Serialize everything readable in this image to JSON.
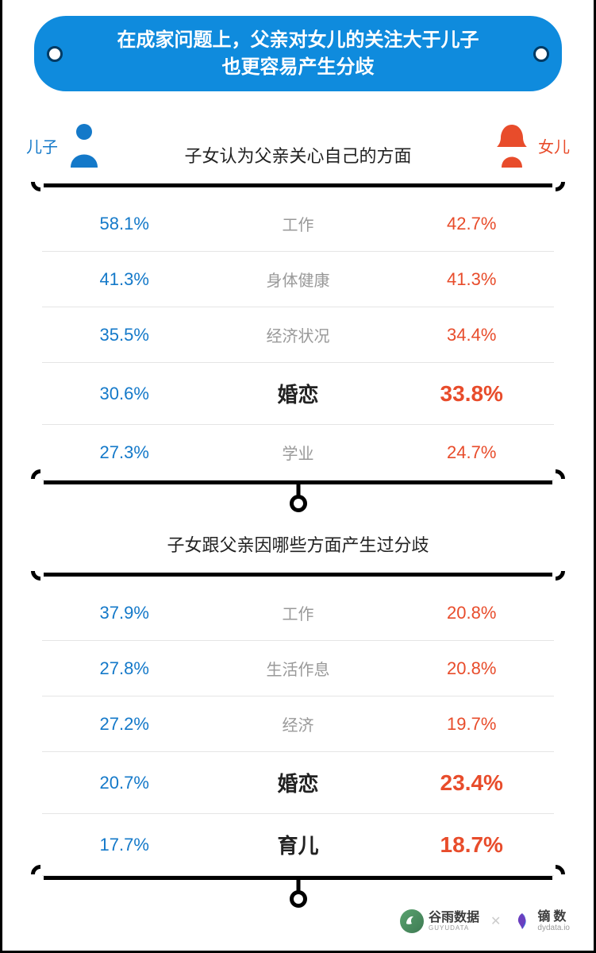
{
  "colors": {
    "son": "#1479c9",
    "daughter": "#e84c2b",
    "title_bg": "#0f8bdd",
    "divider": "#e5e5e5",
    "label_muted": "#999999",
    "label_bold": "#222222",
    "frame": "#000000"
  },
  "title": {
    "line1": "在成家问题上，父亲对女儿的关注大于儿子",
    "line2": "也更容易产生分歧"
  },
  "legend": {
    "son_label": "儿子",
    "daughter_label": "女儿"
  },
  "section1": {
    "title": "子女认为父亲关心自己的方面",
    "rows": [
      {
        "son": "58.1%",
        "label": "工作",
        "daughter": "42.7%",
        "bold": false
      },
      {
        "son": "41.3%",
        "label": "身体健康",
        "daughter": "41.3%",
        "bold": false
      },
      {
        "son": "35.5%",
        "label": "经济状况",
        "daughter": "34.4%",
        "bold": false
      },
      {
        "son": "30.6%",
        "label": "婚恋",
        "daughter": "33.8%",
        "bold": true
      },
      {
        "son": "27.3%",
        "label": "学业",
        "daughter": "24.7%",
        "bold": false
      }
    ]
  },
  "section2": {
    "title": "子女跟父亲因哪些方面产生过分歧",
    "rows": [
      {
        "son": "37.9%",
        "label": "工作",
        "daughter": "20.8%",
        "bold": false
      },
      {
        "son": "27.8%",
        "label": "生活作息",
        "daughter": "20.8%",
        "bold": false
      },
      {
        "son": "27.2%",
        "label": "经济",
        "daughter": "19.7%",
        "bold": false
      },
      {
        "son": "20.7%",
        "label": "婚恋",
        "daughter": "23.4%",
        "bold": true
      },
      {
        "son": "17.7%",
        "label": "育儿",
        "daughter": "18.7%",
        "bold": true
      }
    ]
  },
  "sources": {
    "source1_name": "谷雨数据",
    "source1_sub": "GUYUDATA",
    "source2_name": "镝数",
    "source2_sub": "dydata.io"
  }
}
